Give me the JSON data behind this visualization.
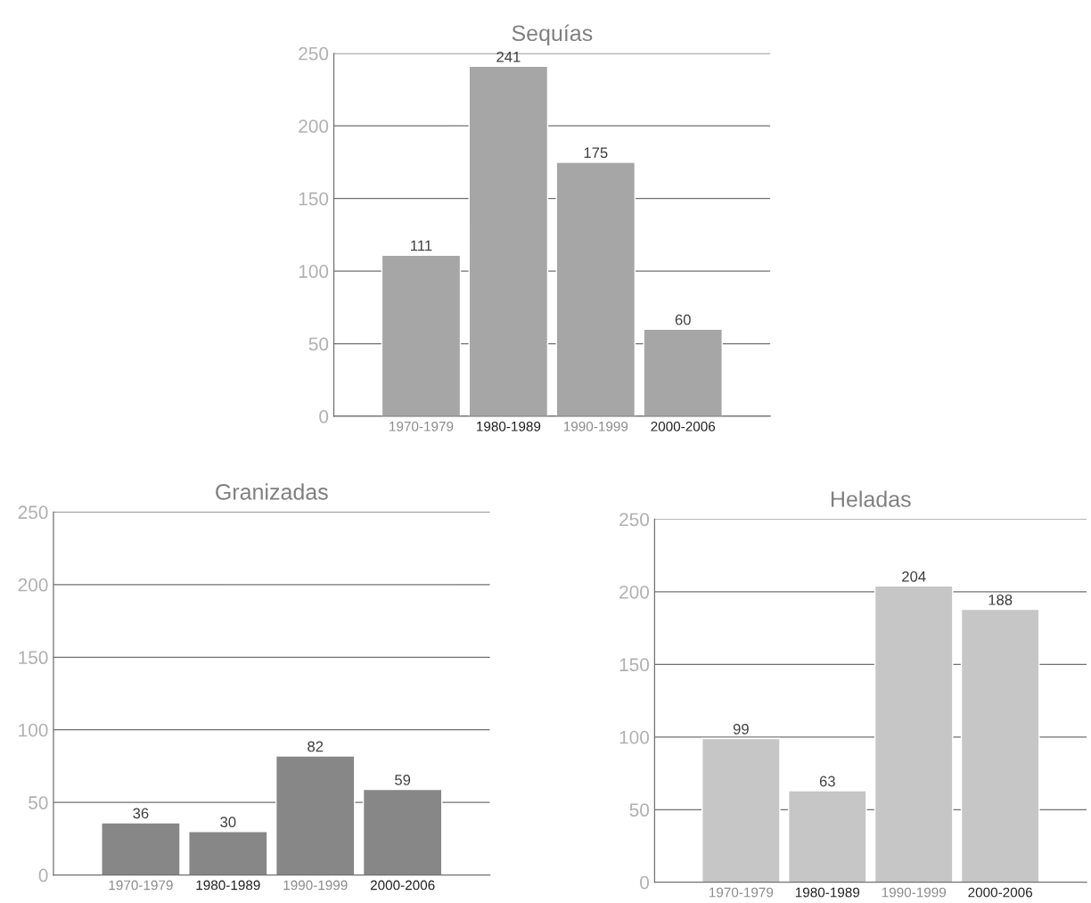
{
  "chart_data": [
    {
      "type": "bar",
      "title": "Sequías",
      "categories": [
        "1970-1979",
        "1980-1989",
        "1990-1999",
        "2000-2006"
      ],
      "values": [
        111,
        241,
        175,
        60
      ],
      "color": "#a6a6a6",
      "ylim": [
        0,
        250
      ],
      "yticks": [
        0,
        50,
        100,
        150,
        200,
        250
      ],
      "grid": "y",
      "data_labels": true
    },
    {
      "type": "bar",
      "title": "Granizadas",
      "categories": [
        "1970-1979",
        "1980-1989",
        "1990-1999",
        "2000-2006"
      ],
      "values": [
        36,
        30,
        82,
        59
      ],
      "color": "#878787",
      "ylim": [
        0,
        250
      ],
      "yticks": [
        0,
        50,
        100,
        150,
        200,
        250
      ],
      "grid": "y",
      "data_labels": true
    },
    {
      "type": "bar",
      "title": "Heladas",
      "categories": [
        "1970-1979",
        "1980-1989",
        "1990-1999",
        "2000-2006"
      ],
      "values": [
        99,
        63,
        204,
        188
      ],
      "color": "#c6c6c6",
      "ylim": [
        0,
        250
      ],
      "yticks": [
        0,
        50,
        100,
        150,
        200,
        250
      ],
      "grid": "y",
      "data_labels": true
    }
  ]
}
